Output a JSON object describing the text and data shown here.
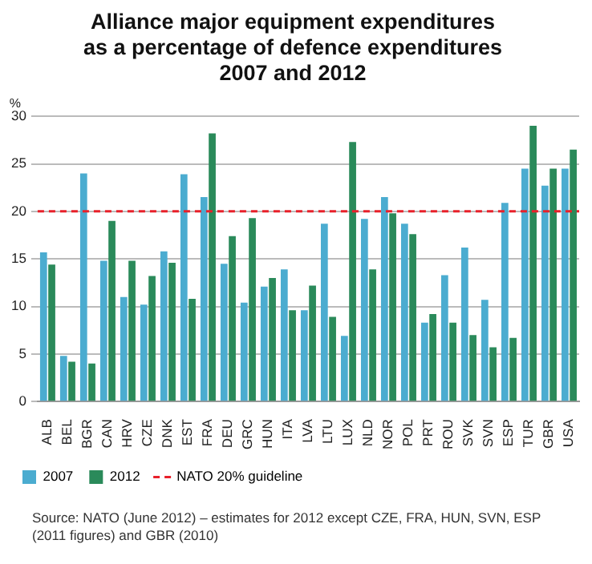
{
  "chart_data": {
    "type": "bar",
    "title": "Alliance major equipment expenditures\nas a percentage of defence expenditures\n2007 and 2012",
    "ylabel": "%",
    "categories": [
      "ALB",
      "BEL",
      "BGR",
      "CAN",
      "HRV",
      "CZE",
      "DNK",
      "EST",
      "FRA",
      "DEU",
      "GRC",
      "HUN",
      "ITA",
      "LVA",
      "LTU",
      "LUX",
      "NLD",
      "NOR",
      "POL",
      "PRT",
      "ROU",
      "SVK",
      "SVN",
      "ESP",
      "TUR",
      "GBR",
      "USA"
    ],
    "series": [
      {
        "name": "2007",
        "color": "#4bacd0",
        "values": [
          15.7,
          4.8,
          24.0,
          14.8,
          11.0,
          10.2,
          15.8,
          23.9,
          21.5,
          14.5,
          10.4,
          12.1,
          13.9,
          9.6,
          18.7,
          6.9,
          19.2,
          21.5,
          18.7,
          8.3,
          13.3,
          16.2,
          10.7,
          20.9,
          24.5,
          22.7,
          24.5
        ]
      },
      {
        "name": "2012",
        "color": "#2a8a5a",
        "values": [
          14.4,
          4.2,
          4.0,
          19.0,
          14.8,
          13.2,
          14.6,
          10.8,
          28.2,
          17.4,
          19.3,
          13.0,
          9.6,
          12.2,
          8.9,
          27.3,
          13.9,
          19.8,
          17.6,
          9.2,
          8.3,
          7.0,
          5.7,
          6.7,
          29.0,
          24.5,
          26.5
        ]
      }
    ],
    "ylim": [
      0,
      30
    ],
    "yticks": [
      0,
      5,
      10,
      15,
      20,
      25,
      30
    ],
    "grid": "y",
    "legend": "bottom left",
    "ref_lines": [
      {
        "axis": "y",
        "value": 20,
        "label": "NATO 20% guideline",
        "color": "#e8202a",
        "line_style": "dashed"
      }
    ],
    "annotations": [
      "Source: NATO (June 2012) – estimates for 2012 except CZE, FRA, HUN, SVN, ESP (2011 figures) and GBR (2010)"
    ]
  }
}
